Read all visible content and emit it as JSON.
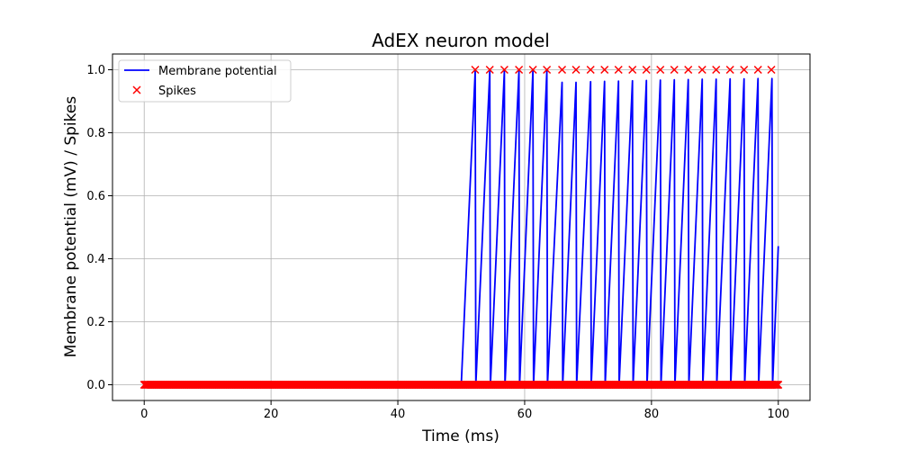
{
  "chart_data": {
    "type": "line",
    "title": "AdEX neuron model",
    "xlabel": "Time (ms)",
    "ylabel": "Membrane potential (mV) / Spikes",
    "xlim": [
      -5,
      105
    ],
    "ylim": [
      -0.05,
      1.05
    ],
    "xticks": [
      0,
      20,
      40,
      60,
      80,
      100
    ],
    "yticks": [
      0.0,
      0.2,
      0.4,
      0.6,
      0.8,
      1.0
    ],
    "grid": true,
    "legend_position": "top-left",
    "series": [
      {
        "name": "Membrane potential",
        "kind": "line",
        "color": "#0000ff",
        "x": [
          0,
          50,
          52.2,
          52.3,
          54.5,
          54.6,
          56.8,
          56.9,
          59.1,
          59.2,
          61.3,
          61.4,
          63.5,
          63.6,
          65.9,
          66.0,
          68.1,
          68.2,
          70.4,
          70.5,
          72.6,
          72.7,
          74.8,
          74.9,
          77.0,
          77.1,
          79.2,
          79.3,
          81.4,
          81.5,
          83.6,
          83.7,
          85.8,
          85.9,
          88.0,
          88.1,
          90.2,
          90.3,
          92.4,
          92.5,
          94.6,
          94.7,
          96.8,
          96.9,
          99.0,
          99.1,
          100
        ],
        "y": [
          0,
          0,
          0.995,
          0,
          0.995,
          0,
          0.995,
          0,
          0.995,
          0,
          0.995,
          0,
          0.995,
          0,
          0.96,
          0,
          0.96,
          0,
          0.962,
          0,
          0.963,
          0,
          0.964,
          0,
          0.965,
          0,
          0.966,
          0,
          0.967,
          0,
          0.968,
          0,
          0.969,
          0,
          0.97,
          0,
          0.97,
          0,
          0.971,
          0,
          0.971,
          0,
          0.972,
          0,
          0.972,
          0,
          0.44
        ]
      },
      {
        "name": "Spikes",
        "kind": "scatter",
        "marker": "x",
        "color": "#ff0000",
        "spike_times": [
          52.2,
          54.5,
          56.8,
          59.1,
          61.3,
          63.5,
          65.9,
          68.1,
          70.4,
          72.6,
          74.8,
          77.0,
          79.2,
          81.4,
          83.6,
          85.8,
          88.0,
          90.2,
          92.4,
          94.6,
          96.8,
          98.9
        ],
        "spike_value": 1.0,
        "baseline_value": 0.0,
        "baseline_range": [
          0,
          100
        ]
      }
    ]
  },
  "colors": {
    "grid": "#b0b0b0",
    "axes": "#000000"
  }
}
